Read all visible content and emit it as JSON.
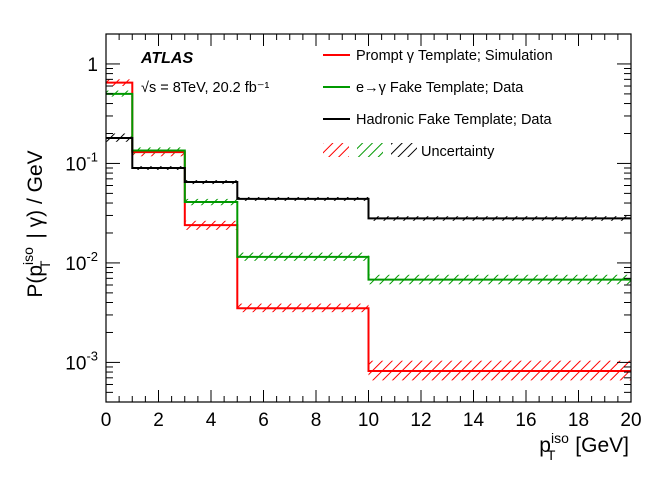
{
  "chart_data": {
    "type": "line",
    "subtype": "step-histogram",
    "title": "",
    "experiment_label": "ATLAS",
    "info_label": "√s = 8TeV, 20.2 fb⁻¹",
    "xlabel": "p_T^iso [GeV]",
    "xlabel_main": "p",
    "xlabel_sup": "iso",
    "xlabel_sub": "T",
    "xlabel_unit": "[GeV]",
    "ylabel": "P(p_T^iso | γ) / GeV",
    "ylabel_main": "P(p",
    "ylabel_sup": "iso",
    "ylabel_sub": "T",
    "ylabel_rest": "| γ) / GeV",
    "xlim": [
      0,
      20
    ],
    "ylim": [
      0.0004,
      2
    ],
    "yscale": "log",
    "x_ticks": [
      0,
      2,
      4,
      6,
      8,
      10,
      12,
      14,
      16,
      18,
      20
    ],
    "x_tick_labels": [
      "0",
      "2",
      "4",
      "6",
      "8",
      "10",
      "12",
      "14",
      "16",
      "18",
      "20"
    ],
    "y_ticks": [
      0.001,
      0.01,
      0.1,
      1
    ],
    "y_tick_labels": [
      {
        "base": "10",
        "exp": "-3"
      },
      {
        "base": "10",
        "exp": "-2"
      },
      {
        "base": "10",
        "exp": "-1"
      },
      {
        "base": "1",
        "exp": ""
      }
    ],
    "bin_edges": [
      0,
      1,
      3,
      5,
      10,
      20
    ],
    "series": [
      {
        "name": "Prompt γ Template; Simulation",
        "color": "#ff0000",
        "values": [
          0.65,
          0.13,
          0.024,
          0.0035,
          0.00082
        ],
        "unc_low": [
          0.6,
          0.118,
          0.0215,
          0.0032,
          0.00066
        ],
        "unc_high": [
          0.7,
          0.142,
          0.0265,
          0.0039,
          0.00104
        ]
      },
      {
        "name": "e→γ Fake Template; Data",
        "color": "#009900",
        "values": [
          0.5,
          0.135,
          0.041,
          0.0115,
          0.0068
        ],
        "unc_low": [
          0.47,
          0.125,
          0.038,
          0.0105,
          0.0061
        ],
        "unc_high": [
          0.54,
          0.145,
          0.044,
          0.0127,
          0.0076
        ]
      },
      {
        "name": "Hadronic Fake Template; Data",
        "color": "#000000",
        "values": [
          0.18,
          0.09,
          0.065,
          0.044,
          0.028
        ],
        "unc_low": [
          0.165,
          0.086,
          0.062,
          0.042,
          0.0265
        ],
        "unc_high": [
          0.2,
          0.094,
          0.068,
          0.046,
          0.0295
        ]
      }
    ],
    "uncertainty_label": "Uncertainty",
    "legend_position": "top-right"
  }
}
